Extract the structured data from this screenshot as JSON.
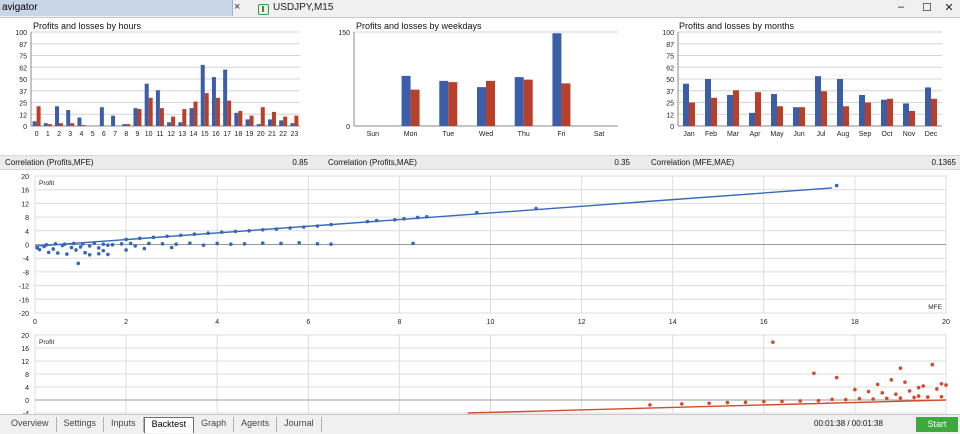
{
  "window": {
    "navigator_title": "avigator",
    "chart_tab_title": "USDJPY,M15"
  },
  "colors": {
    "profit_bar": "#3a5ea8",
    "loss_bar": "#b8402a",
    "mfe_series": "#3568b8",
    "mae_series": "#d44a2a",
    "start_button": "#3da83d"
  },
  "correlations": [
    {
      "label": "Correlation (Profits,MFE)",
      "value": "0.85"
    },
    {
      "label": "Correlation (Profits,MAE)",
      "value": "0.35"
    },
    {
      "label": "Correlation (MFE,MAE)",
      "value": "0.1365"
    }
  ],
  "chart_data": [
    {
      "type": "bar",
      "title": "Profits and losses by hours",
      "categories": [
        "0",
        "1",
        "2",
        "3",
        "4",
        "5",
        "6",
        "7",
        "8",
        "9",
        "10",
        "11",
        "12",
        "13",
        "14",
        "15",
        "16",
        "17",
        "18",
        "19",
        "20",
        "21",
        "22",
        "23"
      ],
      "yticks": [
        "100",
        "87",
        "75",
        "62",
        "50",
        "37",
        "25",
        "12",
        "0"
      ],
      "ylim": [
        0,
        100
      ],
      "series": [
        {
          "values": [
            5,
            3,
            21,
            17,
            9,
            0,
            20,
            11,
            2,
            19,
            45,
            38,
            4,
            4,
            19,
            65,
            52,
            60,
            14,
            7,
            2,
            7,
            6,
            3
          ]
        },
        {
          "values": [
            21,
            2,
            3,
            3,
            1,
            0,
            0,
            0,
            2,
            18,
            30,
            19,
            10,
            18,
            26,
            35,
            30,
            27,
            16,
            11,
            20,
            15,
            10,
            11
          ]
        }
      ]
    },
    {
      "type": "bar",
      "title": "Profits and losses by weekdays",
      "categories": [
        "Sun",
        "Mon",
        "Tue",
        "Wed",
        "Thu",
        "Fri",
        "Sat"
      ],
      "yticks": [
        "150",
        "0"
      ],
      "ylim": [
        0,
        150
      ],
      "series": [
        {
          "values": [
            0,
            80,
            72,
            62,
            78,
            148,
            0
          ]
        },
        {
          "values": [
            0,
            58,
            70,
            72,
            74,
            68,
            0
          ]
        }
      ]
    },
    {
      "type": "bar",
      "title": "Profits and losses by months",
      "categories": [
        "Jan",
        "Feb",
        "Mar",
        "Apr",
        "May",
        "Jun",
        "Jul",
        "Aug",
        "Sep",
        "Oct",
        "Nov",
        "Dec"
      ],
      "yticks": [
        "100",
        "87",
        "75",
        "62",
        "50",
        "37",
        "25",
        "12",
        "0"
      ],
      "ylim": [
        0,
        100
      ],
      "series": [
        {
          "values": [
            45,
            50,
            33,
            14,
            34,
            20,
            53,
            50,
            33,
            28,
            24,
            41
          ]
        },
        {
          "values": [
            25,
            30,
            38,
            36,
            21,
            20,
            37,
            21,
            25,
            29,
            16,
            29
          ]
        }
      ]
    },
    {
      "type": "scatter",
      "ylabel": "Profit",
      "xlabel": "MFE",
      "xlim": [
        0,
        20
      ],
      "ylim": [
        -20,
        20
      ],
      "xticks": [
        "0",
        "2",
        "4",
        "6",
        "8",
        "10",
        "12",
        "14",
        "16",
        "18",
        "20"
      ],
      "yticks": [
        "20",
        "16",
        "12",
        "8",
        "4",
        "0",
        "-4",
        "-8",
        "-12",
        "-16",
        "-20"
      ],
      "trend": [
        [
          0,
          -0.5
        ],
        [
          17.5,
          16.5
        ]
      ],
      "points": [
        [
          0.05,
          -1
        ],
        [
          0.2,
          -0.6
        ],
        [
          0.4,
          -1.3
        ],
        [
          0.6,
          -0.3
        ],
        [
          0.8,
          -0.9
        ],
        [
          1.0,
          -0.7
        ],
        [
          1.2,
          -0.4
        ],
        [
          1.4,
          -1
        ],
        [
          1.6,
          -0.2
        ],
        [
          0.3,
          -2.3
        ],
        [
          0.5,
          -2.5
        ],
        [
          0.7,
          -2.8
        ],
        [
          0.9,
          -1.6
        ],
        [
          1.1,
          -2.4
        ],
        [
          0.95,
          -5.5
        ],
        [
          1.5,
          -1.8
        ],
        [
          1.2,
          -3
        ],
        [
          0.1,
          -1.5
        ],
        [
          0.25,
          -0.1
        ],
        [
          0.45,
          0.2
        ],
        [
          0.65,
          0.1
        ],
        [
          0.85,
          0.3
        ],
        [
          1.05,
          0.2
        ],
        [
          1.3,
          0.4
        ],
        [
          1.5,
          0.1
        ],
        [
          1.7,
          -0.1
        ],
        [
          1.9,
          0.2
        ],
        [
          2.1,
          0.3
        ],
        [
          1.4,
          -2.7
        ],
        [
          1.6,
          -2.9
        ],
        [
          2.0,
          1.5
        ],
        [
          2.3,
          1.8
        ],
        [
          2.6,
          2.1
        ],
        [
          2.9,
          2.4
        ],
        [
          3.2,
          2.7
        ],
        [
          3.5,
          3.0
        ],
        [
          3.8,
          3.3
        ],
        [
          4.1,
          3.6
        ],
        [
          4.4,
          3.8
        ],
        [
          4.7,
          4.0
        ],
        [
          5.0,
          4.3
        ],
        [
          5.3,
          4.5
        ],
        [
          5.6,
          4.8
        ],
        [
          5.9,
          5.1
        ],
        [
          6.2,
          5.4
        ],
        [
          6.5,
          5.8
        ],
        [
          7.3,
          6.7
        ],
        [
          7.5,
          7.0
        ],
        [
          7.9,
          7.2
        ],
        [
          8.1,
          7.5
        ],
        [
          8.4,
          7.9
        ],
        [
          8.6,
          8.1
        ],
        [
          9.7,
          9.3
        ],
        [
          11.0,
          10.5
        ],
        [
          17.6,
          17.2
        ],
        [
          2.2,
          -0.4
        ],
        [
          2.5,
          0.3
        ],
        [
          2.8,
          0.2
        ],
        [
          3.1,
          0.1
        ],
        [
          3.4,
          0.4
        ],
        [
          3.7,
          -0.2
        ],
        [
          4.0,
          0.3
        ],
        [
          4.3,
          0.1
        ],
        [
          4.6,
          0.2
        ],
        [
          5.0,
          0.4
        ],
        [
          5.4,
          0.3
        ],
        [
          5.8,
          0.5
        ],
        [
          6.2,
          0.2
        ],
        [
          6.5,
          0.1
        ],
        [
          8.3,
          0.3
        ],
        [
          2.0,
          -1.6
        ],
        [
          2.4,
          -1.2
        ],
        [
          3.0,
          -0.9
        ]
      ]
    },
    {
      "type": "scatter",
      "ylabel": "Profit",
      "xlim": [
        0,
        20
      ],
      "ylim": [
        -4,
        20
      ],
      "yticks": [
        "20",
        "16",
        "12",
        "8",
        "4",
        "0",
        "-4"
      ],
      "trend": [
        [
          9.5,
          -4
        ],
        [
          20,
          0
        ]
      ],
      "points": [
        [
          13.5,
          -1.5
        ],
        [
          14.2,
          -1.2
        ],
        [
          14.8,
          -1.0
        ],
        [
          15.2,
          -0.8
        ],
        [
          15.6,
          -0.7
        ],
        [
          16.0,
          -0.5
        ],
        [
          16.4,
          -0.4
        ],
        [
          16.8,
          -0.3
        ],
        [
          17.2,
          -0.2
        ],
        [
          17.5,
          0.2
        ],
        [
          17.8,
          0.1
        ],
        [
          18.1,
          0.4
        ],
        [
          18.4,
          0.3
        ],
        [
          18.7,
          0.5
        ],
        [
          19.0,
          0.6
        ],
        [
          19.3,
          0.8
        ],
        [
          19.6,
          0.9
        ],
        [
          19.9,
          1.0
        ],
        [
          16.2,
          17.8
        ],
        [
          18.5,
          4.8
        ],
        [
          18.8,
          6.2
        ],
        [
          19.1,
          5.5
        ],
        [
          19.4,
          3.8
        ],
        [
          19.7,
          10.9
        ],
        [
          19.9,
          5.0
        ],
        [
          17.1,
          8.2
        ],
        [
          17.6,
          6.9
        ],
        [
          18.0,
          3.2
        ],
        [
          18.3,
          2.6
        ],
        [
          18.6,
          2.2
        ],
        [
          19.2,
          2.8
        ],
        [
          19.5,
          4.3
        ],
        [
          19.8,
          3.4
        ],
        [
          20.0,
          4.6
        ],
        [
          19.0,
          9.8
        ],
        [
          18.9,
          1.8
        ],
        [
          19.4,
          1.2
        ]
      ]
    }
  ],
  "bottom_tabs": [
    "Overview",
    "Settings",
    "Inputs",
    "Backtest",
    "Graph",
    "Agents",
    "Journal"
  ],
  "active_tab": "Backtest",
  "timer": "00:01:38 / 00:01:38",
  "start_label": "Start"
}
